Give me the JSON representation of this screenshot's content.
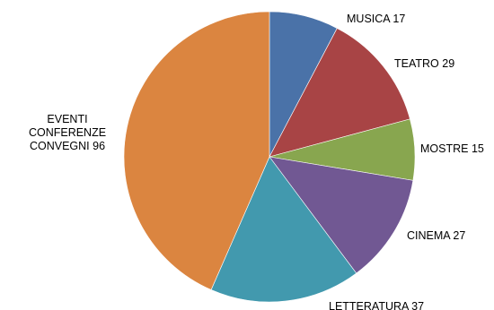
{
  "chart_data": {
    "type": "pie",
    "start_angle_deg": 0,
    "direction": "clockwise",
    "slices": [
      {
        "label_lines": [
          "MUSICA 17"
        ],
        "value": 17,
        "color": "#4a72a8"
      },
      {
        "label_lines": [
          "TEATRO 29"
        ],
        "value": 29,
        "color": "#a84445"
      },
      {
        "label_lines": [
          "MOSTRE 15"
        ],
        "value": 15,
        "color": "#88a64f"
      },
      {
        "label_lines": [
          "CINEMA 27"
        ],
        "value": 27,
        "color": "#715893"
      },
      {
        "label_lines": [
          "LETTERATURA 37"
        ],
        "value": 37,
        "color": "#4299ae"
      },
      {
        "label_lines": [
          "EVENTI",
          "CONFERENZE",
          "CONVEGNI 96"
        ],
        "value": 96,
        "color": "#db8540"
      }
    ]
  }
}
